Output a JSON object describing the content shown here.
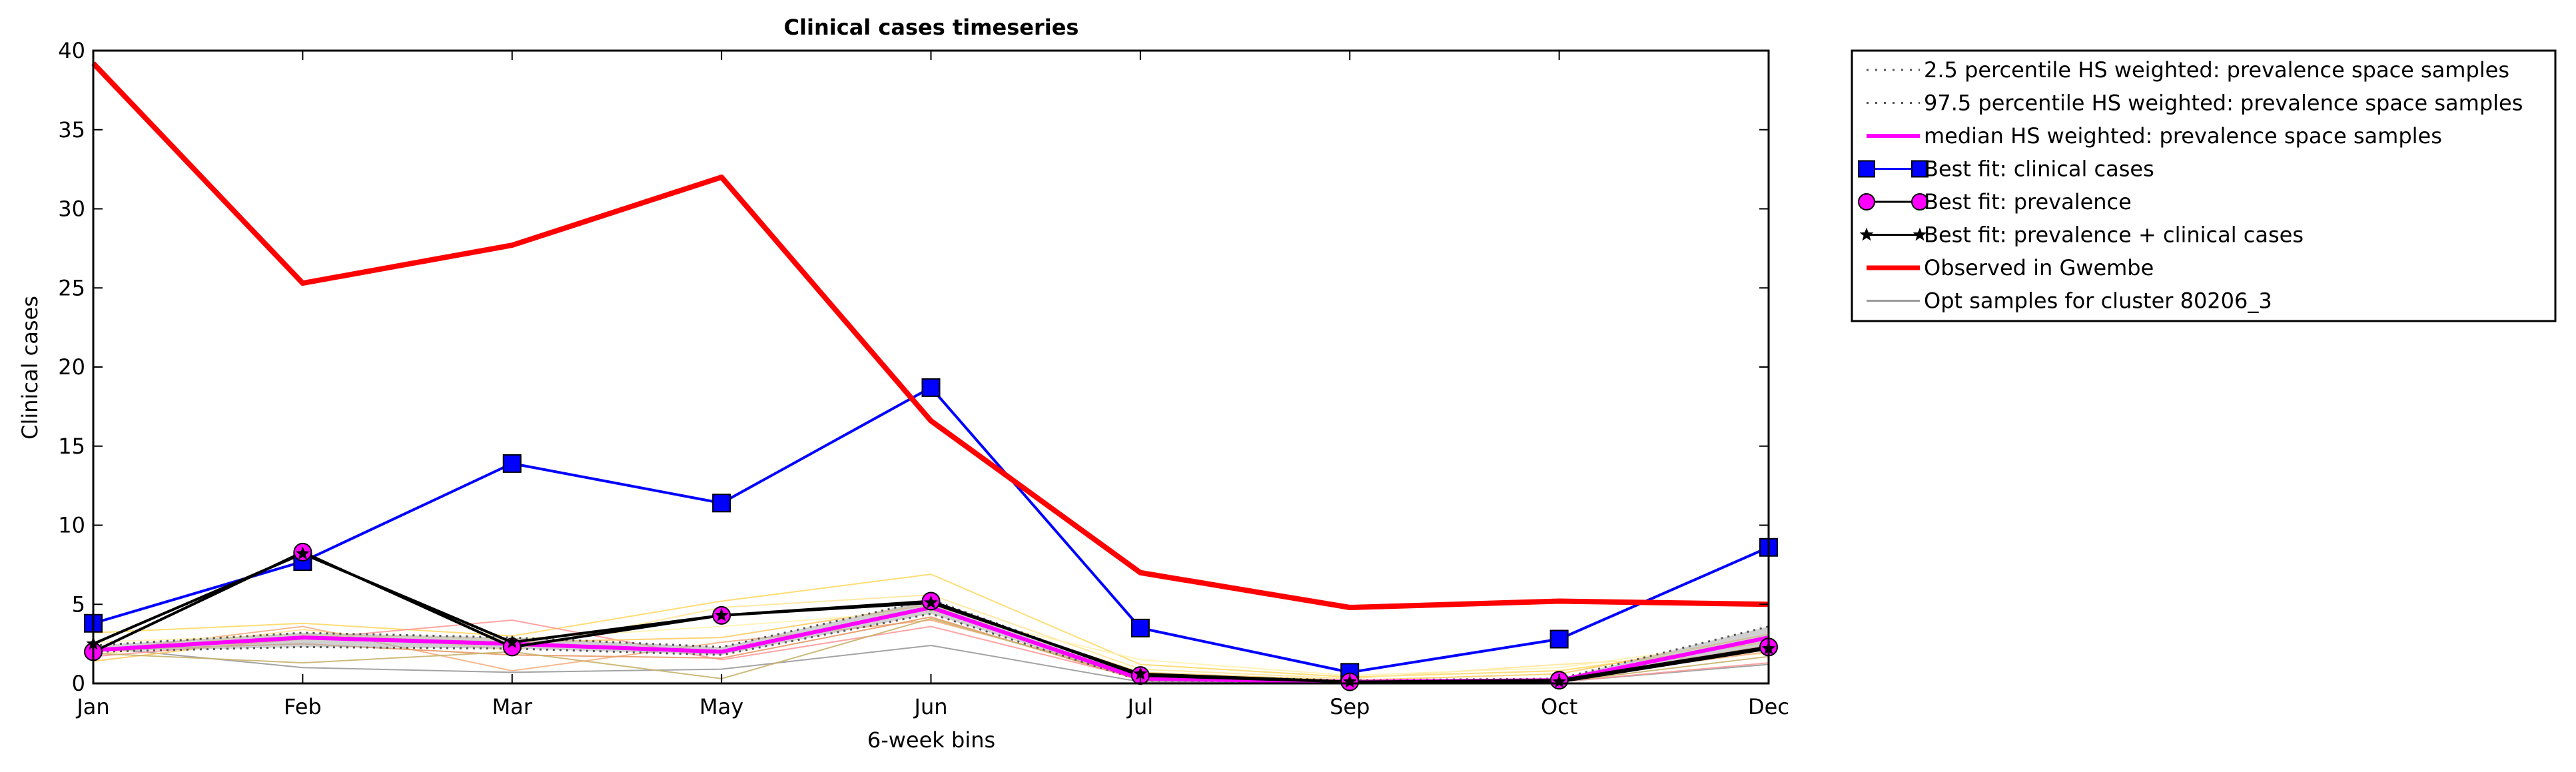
{
  "chart_data": {
    "type": "line",
    "title": "Clinical cases timeseries",
    "xlabel": "6-week bins",
    "ylabel": "Clinical cases",
    "categories": [
      "Jan",
      "Feb",
      "Mar",
      "May",
      "Jun",
      "Jul",
      "Sep",
      "Oct",
      "Dec"
    ],
    "ylim": [
      0,
      40
    ],
    "yticks": [
      "0",
      "5",
      "10",
      "15",
      "20",
      "25",
      "30",
      "35",
      "40"
    ],
    "grid": false,
    "legend_position": "outside-right-top",
    "series": [
      {
        "name": "2.5 percentile HS weighted: prevalence space samples",
        "color": "#555555",
        "style": "dotted",
        "values": [
          2.0,
          2.3,
          2.2,
          1.8,
          4.4,
          0.2,
          0.05,
          0.1,
          2.2
        ]
      },
      {
        "name": "97.5 percentile HS weighted: prevalence space samples",
        "color": "#555555",
        "style": "dotted",
        "values": [
          2.4,
          3.2,
          2.9,
          2.3,
          5.3,
          0.5,
          0.2,
          0.3,
          3.6
        ]
      },
      {
        "name": "median HS weighted: prevalence space samples",
        "color": "#ff00ff",
        "style": "solid",
        "values": [
          2.1,
          2.9,
          2.5,
          2.0,
          4.8,
          0.3,
          0.1,
          0.2,
          2.9
        ]
      },
      {
        "name": "Best fit: clinical cases",
        "color": "#0000ff",
        "marker": "square",
        "values": [
          3.8,
          7.7,
          13.9,
          11.4,
          18.7,
          3.5,
          0.7,
          2.8,
          8.6
        ]
      },
      {
        "name": "Best fit: prevalence",
        "color": "#000000",
        "marker": "circle",
        "marker_color": "#ff00ff",
        "values": [
          2.0,
          8.3,
          2.3,
          4.3,
          5.2,
          0.5,
          0.1,
          0.2,
          2.3
        ]
      },
      {
        "name": "Best fit: prevalence + clinical cases",
        "color": "#000000",
        "marker": "star",
        "values": [
          2.5,
          8.2,
          2.6,
          4.3,
          5.1,
          0.6,
          0.1,
          0.1,
          2.2
        ]
      },
      {
        "name": "Observed in Gwembe",
        "color": "#ff0000",
        "style": "thick",
        "values": [
          39.2,
          25.3,
          27.7,
          32.0,
          16.6,
          7.0,
          4.8,
          5.2,
          5.0
        ]
      },
      {
        "name": "Opt samples for cluster 80206_3",
        "color": "#999999",
        "style": "thin",
        "values": [
          2.3,
          1.0,
          0.7,
          0.9,
          2.4,
          0.1,
          0.05,
          0.1,
          1.2
        ]
      }
    ],
    "opt_samples": [
      {
        "color": "#999999",
        "values": [
          2.3,
          1.0,
          0.7,
          0.9,
          2.4,
          0.1,
          0.05,
          0.1,
          1.2
        ]
      },
      {
        "color": "#ffd966",
        "values": [
          3.2,
          3.8,
          3.0,
          5.2,
          6.9,
          1.2,
          0.4,
          0.8,
          2.6
        ]
      },
      {
        "color": "#ffe699",
        "values": [
          1.8,
          3.4,
          2.1,
          4.8,
          5.6,
          0.9,
          0.3,
          1.2,
          1.9
        ]
      },
      {
        "color": "#f4b183",
        "values": [
          2.0,
          3.6,
          0.8,
          2.6,
          4.0,
          0.5,
          0.1,
          0.3,
          2.0
        ]
      },
      {
        "color": "#ff9999",
        "values": [
          1.7,
          2.8,
          4.0,
          1.5,
          3.6,
          0.3,
          0.1,
          0.1,
          1.3
        ]
      },
      {
        "color": "#e59866",
        "values": [
          2.1,
          2.5,
          1.8,
          1.6,
          4.2,
          0.2,
          0.1,
          0.2,
          2.4
        ]
      },
      {
        "color": "#ffcc66",
        "values": [
          1.4,
          3.0,
          2.6,
          2.9,
          5.0,
          0.7,
          0.2,
          0.6,
          3.1
        ]
      },
      {
        "color": "#c9b26b",
        "values": [
          1.9,
          1.3,
          2.0,
          0.3,
          4.1,
          0.3,
          0.05,
          0.1,
          1.7
        ]
      },
      {
        "color": "#fff2b3",
        "values": [
          2.6,
          3.1,
          2.8,
          3.6,
          4.6,
          1.5,
          0.5,
          1.0,
          2.8
        ]
      }
    ]
  }
}
